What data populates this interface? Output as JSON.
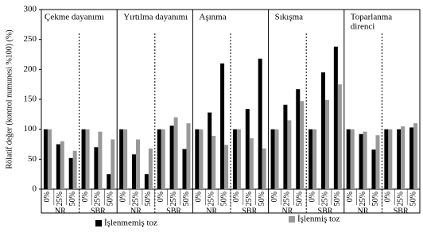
{
  "chart_data": {
    "type": "bar",
    "y_label": "Rölatif değer (kontrol numunesi %100) (%)",
    "panels": [
      [
        "Çekme dayanımı"
      ],
      [
        "Yırtılma dayanımı"
      ],
      [
        "Aşınma"
      ],
      [
        "Sıkışma"
      ],
      [
        "Toparlanma",
        "direnci"
      ]
    ],
    "group_labels": [
      "NR",
      "SBR",
      "NR",
      "SBR",
      "NR",
      "SBR",
      "NR",
      "SBR",
      "NR",
      "SBR"
    ],
    "categories": [
      "0%",
      "25%",
      "50%",
      "0%",
      "25%",
      "50%",
      "0%",
      "25%",
      "50%",
      "0%",
      "25%",
      "50%",
      "0%",
      "25%",
      "50%",
      "0%",
      "25%",
      "50%",
      "0%",
      "25%",
      "50%",
      "0%",
      "25%",
      "50%",
      "0%",
      "25%",
      "50%",
      "0%",
      "25%",
      "50%"
    ],
    "series": [
      {
        "name": "İşlenmemiş toz",
        "color": "#000000",
        "values": [
          100,
          75,
          52,
          100,
          70,
          25,
          100,
          58,
          25,
          100,
          106,
          67,
          100,
          128,
          210,
          100,
          134,
          218,
          100,
          141,
          167,
          100,
          195,
          238,
          100,
          92,
          66,
          100,
          100,
          103
        ]
      },
      {
        "name": "İşlenmiş toz",
        "color": "#999999",
        "values": [
          100,
          80,
          64,
          100,
          96,
          83,
          100,
          83,
          68,
          100,
          120,
          110,
          100,
          89,
          74,
          100,
          85,
          68,
          100,
          115,
          147,
          100,
          149,
          175,
          100,
          96,
          90,
          100,
          105,
          110
        ]
      }
    ],
    "ylim": [
      0,
      300
    ],
    "yticks": [
      0,
      50,
      100,
      150,
      200,
      250,
      300
    ]
  }
}
